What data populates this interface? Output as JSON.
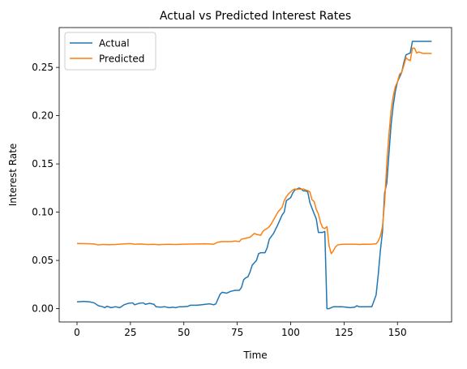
{
  "chart_data": {
    "type": "line",
    "title": "Actual vs Predicted Interest Rates",
    "xlabel": "Time",
    "ylabel": "Interest Rate",
    "xlim": [
      -8.35,
      175.35
    ],
    "ylim": [
      -0.0138,
      0.2913
    ],
    "xticks": [
      0,
      25,
      50,
      75,
      100,
      125,
      150
    ],
    "yticks": [
      0.0,
      0.05,
      0.1,
      0.15,
      0.2,
      0.25
    ],
    "ytick_labels": [
      "0.00",
      "0.05",
      "0.10",
      "0.15",
      "0.20",
      "0.25"
    ],
    "grid": false,
    "legend_position": "upper-left",
    "series": [
      {
        "name": "Actual",
        "color": "#1f77b4",
        "points": [
          [
            0,
            0.007
          ],
          [
            3,
            0.0075
          ],
          [
            6,
            0.007
          ],
          [
            8,
            0.006
          ],
          [
            10,
            0.003
          ],
          [
            12,
            0.002
          ],
          [
            13,
            0.001
          ],
          [
            14,
            0.0025
          ],
          [
            16,
            0.001
          ],
          [
            18,
            0.002
          ],
          [
            20,
            0.001
          ],
          [
            22,
            0.004
          ],
          [
            24,
            0.0055
          ],
          [
            26,
            0.006
          ],
          [
            27,
            0.004
          ],
          [
            29,
            0.0055
          ],
          [
            31,
            0.006
          ],
          [
            32,
            0.0045
          ],
          [
            34,
            0.0055
          ],
          [
            36,
            0.0045
          ],
          [
            37,
            0.002
          ],
          [
            39,
            0.0015
          ],
          [
            41,
            0.002
          ],
          [
            43,
            0.001
          ],
          [
            45,
            0.0015
          ],
          [
            46,
            0.001
          ],
          [
            48,
            0.002
          ],
          [
            50,
            0.002
          ],
          [
            52,
            0.0025
          ],
          [
            53,
            0.0035
          ],
          [
            56,
            0.0035
          ],
          [
            58,
            0.004
          ],
          [
            60,
            0.0045
          ],
          [
            62,
            0.005
          ],
          [
            64,
            0.004
          ],
          [
            65,
            0.005
          ],
          [
            67,
            0.015
          ],
          [
            68,
            0.017
          ],
          [
            70,
            0.016
          ],
          [
            72,
            0.018
          ],
          [
            74,
            0.019
          ],
          [
            76,
            0.019
          ],
          [
            77,
            0.022
          ],
          [
            78,
            0.03
          ],
          [
            79,
            0.032
          ],
          [
            80,
            0.033
          ],
          [
            81,
            0.038
          ],
          [
            82,
            0.045
          ],
          [
            84,
            0.05
          ],
          [
            85,
            0.057
          ],
          [
            86,
            0.058
          ],
          [
            88,
            0.058
          ],
          [
            89,
            0.063
          ],
          [
            90,
            0.072
          ],
          [
            92,
            0.078
          ],
          [
            94,
            0.087
          ],
          [
            96,
            0.097
          ],
          [
            97,
            0.1
          ],
          [
            98,
            0.112
          ],
          [
            100,
            0.115
          ],
          [
            101,
            0.12
          ],
          [
            102,
            0.123
          ],
          [
            103,
            0.124
          ],
          [
            104,
            0.125
          ],
          [
            105,
            0.124
          ],
          [
            106,
            0.122
          ],
          [
            107,
            0.122
          ],
          [
            108,
            0.121
          ],
          [
            109,
            0.11
          ],
          [
            110,
            0.104
          ],
          [
            112,
            0.093
          ],
          [
            113,
            0.079
          ],
          [
            114,
            0.079
          ],
          [
            115,
            0.079
          ],
          [
            116,
            0.08
          ],
          [
            117,
            0.0
          ],
          [
            118,
            0.0
          ],
          [
            119,
            0.001
          ],
          [
            120,
            0.002
          ],
          [
            122,
            0.002
          ],
          [
            124,
            0.002
          ],
          [
            126,
            0.0015
          ],
          [
            128,
            0.001
          ],
          [
            130,
            0.0015
          ],
          [
            131,
            0.003
          ],
          [
            132,
            0.002
          ],
          [
            134,
            0.002
          ],
          [
            136,
            0.002
          ],
          [
            138,
            0.002
          ],
          [
            140,
            0.014
          ],
          [
            141,
            0.035
          ],
          [
            142,
            0.06
          ],
          [
            143,
            0.08
          ],
          [
            144,
            0.12
          ],
          [
            145,
            0.13
          ],
          [
            146,
            0.16
          ],
          [
            147,
            0.19
          ],
          [
            148,
            0.21
          ],
          [
            149,
            0.225
          ],
          [
            150,
            0.235
          ],
          [
            151,
            0.24
          ],
          [
            152,
            0.245
          ],
          [
            153,
            0.255
          ],
          [
            154,
            0.263
          ],
          [
            155,
            0.264
          ],
          [
            156,
            0.265
          ],
          [
            157,
            0.277
          ],
          [
            160,
            0.277
          ],
          [
            163,
            0.277
          ],
          [
            166,
            0.277
          ]
        ]
      },
      {
        "name": "Predicted",
        "color": "#ff7f0e",
        "points": [
          [
            0,
            0.0675
          ],
          [
            5,
            0.0673
          ],
          [
            8,
            0.067
          ],
          [
            10,
            0.066
          ],
          [
            12,
            0.0665
          ],
          [
            15,
            0.0663
          ],
          [
            18,
            0.0665
          ],
          [
            20,
            0.0668
          ],
          [
            23,
            0.0672
          ],
          [
            25,
            0.0674
          ],
          [
            27,
            0.0668
          ],
          [
            30,
            0.067
          ],
          [
            33,
            0.0665
          ],
          [
            36,
            0.0667
          ],
          [
            38,
            0.0663
          ],
          [
            40,
            0.0665
          ],
          [
            43,
            0.0667
          ],
          [
            46,
            0.0665
          ],
          [
            50,
            0.0668
          ],
          [
            55,
            0.067
          ],
          [
            60,
            0.0672
          ],
          [
            64,
            0.0668
          ],
          [
            66,
            0.069
          ],
          [
            68,
            0.0695
          ],
          [
            70,
            0.0695
          ],
          [
            72,
            0.0695
          ],
          [
            74,
            0.07
          ],
          [
            76,
            0.0695
          ],
          [
            77,
            0.072
          ],
          [
            79,
            0.073
          ],
          [
            80,
            0.0735
          ],
          [
            81,
            0.074
          ],
          [
            82,
            0.076
          ],
          [
            83,
            0.078
          ],
          [
            84,
            0.077
          ],
          [
            86,
            0.076
          ],
          [
            87,
            0.08
          ],
          [
            88,
            0.082
          ],
          [
            89,
            0.083
          ],
          [
            90,
            0.085
          ],
          [
            91,
            0.088
          ],
          [
            92,
            0.092
          ],
          [
            93,
            0.096
          ],
          [
            94,
            0.1
          ],
          [
            96,
            0.105
          ],
          [
            97,
            0.112
          ],
          [
            98,
            0.116
          ],
          [
            99,
            0.119
          ],
          [
            100,
            0.121
          ],
          [
            101,
            0.123
          ],
          [
            102,
            0.124
          ],
          [
            103,
            0.1235
          ],
          [
            104,
            0.124
          ],
          [
            105,
            0.1235
          ],
          [
            106,
            0.124
          ],
          [
            107,
            0.123
          ],
          [
            108,
            0.1225
          ],
          [
            109,
            0.121
          ],
          [
            110,
            0.113
          ],
          [
            111,
            0.111
          ],
          [
            112,
            0.103
          ],
          [
            113,
            0.098
          ],
          [
            114,
            0.089
          ],
          [
            115,
            0.084
          ],
          [
            116,
            0.083
          ],
          [
            117,
            0.085
          ],
          [
            118,
            0.065
          ],
          [
            119,
            0.057
          ],
          [
            120,
            0.06
          ],
          [
            121,
            0.064
          ],
          [
            122,
            0.066
          ],
          [
            124,
            0.0667
          ],
          [
            126,
            0.0668
          ],
          [
            128,
            0.0668
          ],
          [
            130,
            0.0668
          ],
          [
            132,
            0.0665
          ],
          [
            134,
            0.0668
          ],
          [
            137,
            0.0667
          ],
          [
            140,
            0.0672
          ],
          [
            141,
            0.07
          ],
          [
            142,
            0.075
          ],
          [
            143,
            0.085
          ],
          [
            144,
            0.11
          ],
          [
            145,
            0.15
          ],
          [
            146,
            0.18
          ],
          [
            147,
            0.205
          ],
          [
            148,
            0.22
          ],
          [
            149,
            0.23
          ],
          [
            150,
            0.235
          ],
          [
            151,
            0.243
          ],
          [
            152,
            0.245
          ],
          [
            153,
            0.252
          ],
          [
            154,
            0.26
          ],
          [
            155,
            0.258
          ],
          [
            156,
            0.257
          ],
          [
            157,
            0.27
          ],
          [
            158,
            0.27
          ],
          [
            159,
            0.265
          ],
          [
            160,
            0.266
          ],
          [
            162,
            0.2645
          ],
          [
            164,
            0.2645
          ],
          [
            166,
            0.2645
          ]
        ]
      }
    ]
  }
}
